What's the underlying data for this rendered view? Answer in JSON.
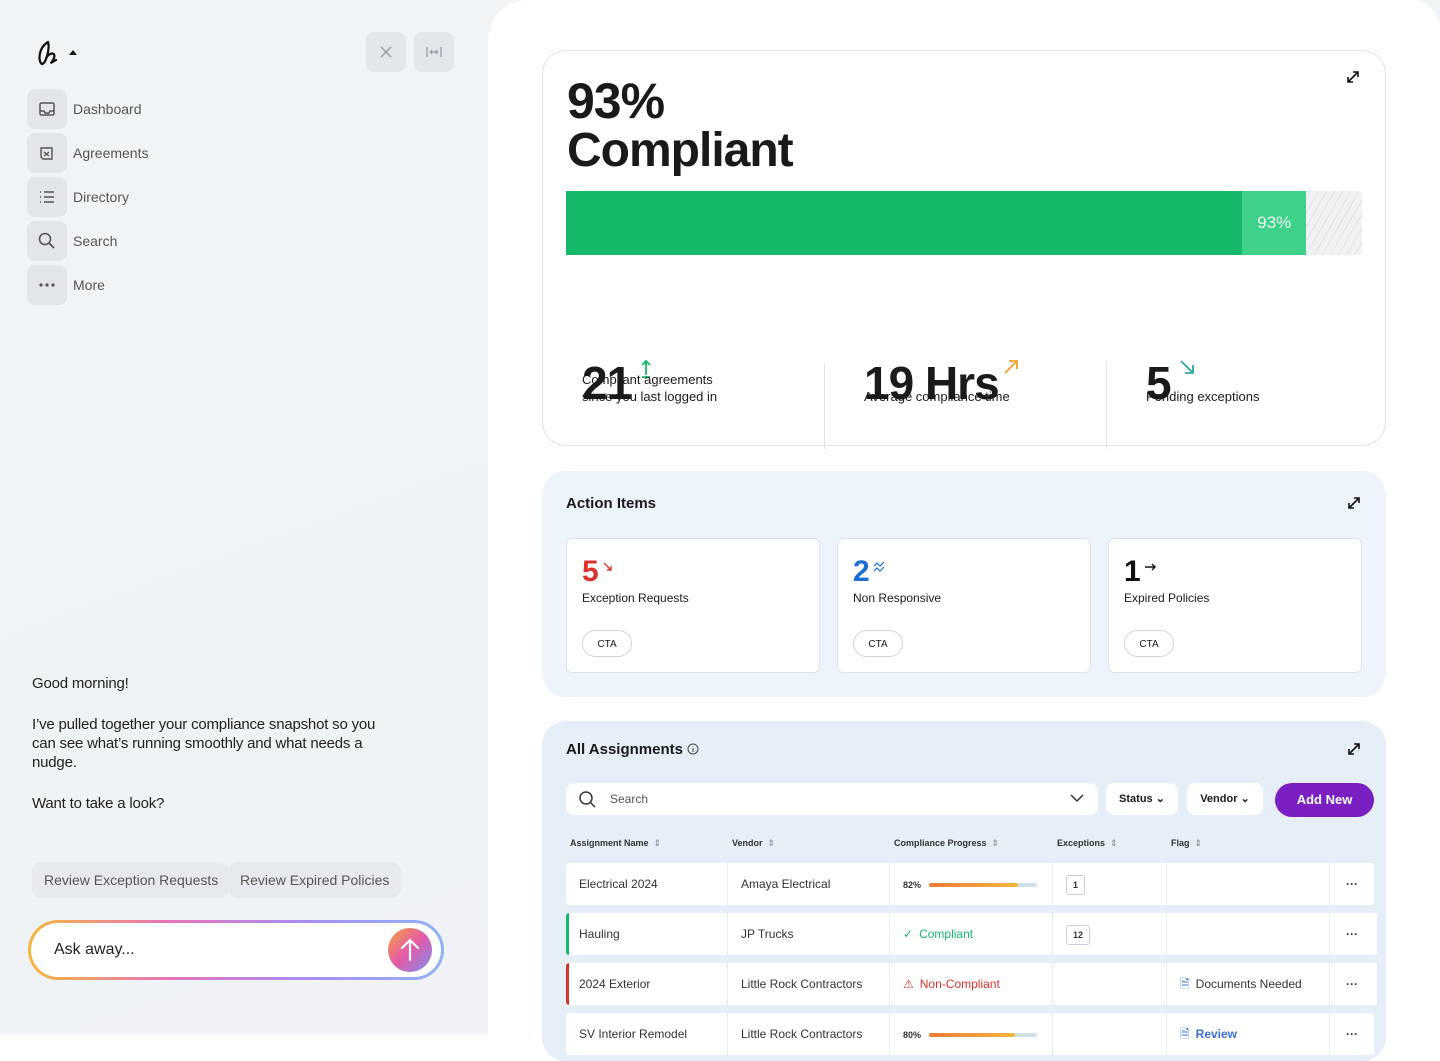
{
  "sidebar": {
    "nav": [
      "Dashboard",
      "Agreements",
      "Directory",
      "Search",
      "More"
    ],
    "greeting": "Good morning!",
    "message": "I’ve pulled together your compliance snapshot so you can see what’s running smoothly and what needs a nudge.",
    "prompt": "Want to take a look?",
    "suggestions": [
      "Review Exception Requests",
      "Review Expired Policies"
    ],
    "input_placeholder": "Ask away..."
  },
  "compliance": {
    "label": "Compliant",
    "progress": {
      "value": 93,
      "label": "93%"
    },
    "stats": [
      {
        "value": "21",
        "label": "Compliant agreements since you last logged in"
      },
      {
        "value": "19 Hrs",
        "label": "Average compliance time"
      },
      {
        "value": "5",
        "label": "Pending exceptions"
      }
    ]
  },
  "action_items": {
    "title": "Action Items",
    "items": [
      {
        "count": "5",
        "label": "Exception Requests",
        "button": "CTA"
      },
      {
        "count": "2",
        "label": "Non Responsive",
        "button": "CTA"
      },
      {
        "count": "1",
        "label": "Expired Policies",
        "button": "CTA"
      }
    ]
  },
  "assignments": {
    "title": "All Assignments",
    "search_placeholder": "Search",
    "filters": [
      "Status",
      "Vendor"
    ],
    "add_button": "Add New",
    "columns": [
      "Assignment Name",
      "Vendor",
      "Compliance Progress",
      "Exceptions",
      "Flag"
    ],
    "rows": [
      {
        "name": "Electrical 2024",
        "vendor": "Amaya Electrical",
        "progress": {
          "value": 82,
          "label": "82%"
        },
        "exceptions": "1"
      },
      {
        "name": "Hauling",
        "vendor": "JP Trucks",
        "status": "Compliant",
        "exceptions": "12"
      },
      {
        "name": "2024 Exterior",
        "vendor": "Little Rock Contractors",
        "status": "Non-Compliant",
        "flag": "Documents Needed"
      },
      {
        "name": "SV Interior Remodel",
        "vendor": "Little Rock Contractors",
        "progress": {
          "value": 80,
          "label": "80%"
        },
        "flag": "Review"
      }
    ]
  }
}
